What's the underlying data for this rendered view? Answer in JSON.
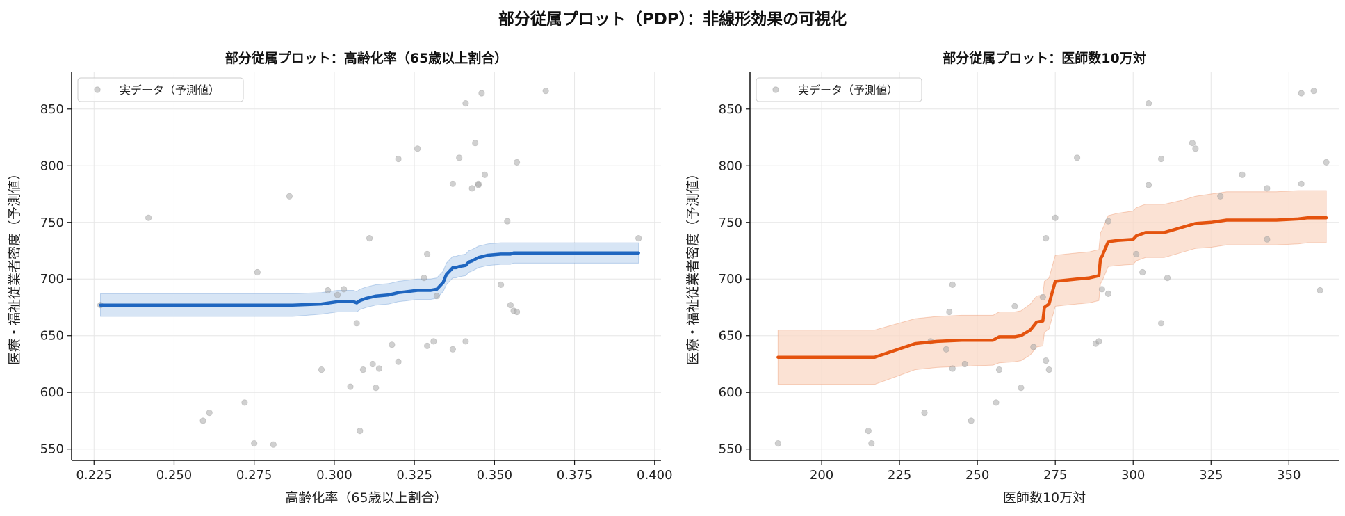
{
  "suptitle": "部分従属プロット（PDP）：非線形効果の可視化",
  "chart_data": [
    {
      "type": "line",
      "title": "部分従属プロット：高齢化率（65歳以上割合）",
      "xlabel": "高齢化率（65歳以上割合）",
      "ylabel": "医療・福祉従業者密度（予測値）",
      "xlim": [
        0.218,
        0.402
      ],
      "ylim": [
        540,
        883
      ],
      "xticks": [
        0.225,
        0.25,
        0.275,
        0.3,
        0.325,
        0.35,
        0.375,
        0.4
      ],
      "xtick_labels": [
        "0.225",
        "0.250",
        "0.275",
        "0.300",
        "0.325",
        "0.350",
        "0.375",
        "0.400"
      ],
      "yticks": [
        550,
        600,
        650,
        700,
        750,
        800,
        850
      ],
      "grid": true,
      "legend": {
        "position": "top-left",
        "entries": [
          "実データ（予測値）"
        ]
      },
      "line_color": "#1f66c0",
      "band_color": "#c9dcf2",
      "pdp": {
        "x": [
          0.227,
          0.287,
          0.296,
          0.301,
          0.306,
          0.307,
          0.308,
          0.31,
          0.313,
          0.317,
          0.32,
          0.323,
          0.326,
          0.33,
          0.332,
          0.334,
          0.335,
          0.337,
          0.338,
          0.339,
          0.341,
          0.342,
          0.343,
          0.345,
          0.348,
          0.352,
          0.355,
          0.356,
          0.357,
          0.36,
          0.375,
          0.395
        ],
        "y": [
          677,
          677,
          678,
          680,
          680,
          679,
          681,
          683,
          685,
          686,
          688,
          689,
          690,
          690,
          691,
          697,
          704,
          710,
          710,
          711,
          712,
          715,
          716,
          719,
          721,
          722,
          722,
          723,
          723,
          723,
          723,
          723
        ],
        "lower": [
          667,
          667,
          669,
          671,
          671,
          671,
          673,
          675,
          677,
          678,
          680,
          681,
          682,
          682,
          683,
          689,
          695,
          701,
          701,
          702,
          703,
          706,
          707,
          710,
          712,
          713,
          713,
          714,
          714,
          714,
          714,
          714
        ],
        "upper": [
          687,
          687,
          688,
          690,
          690,
          689,
          691,
          693,
          695,
          696,
          698,
          699,
          700,
          700,
          701,
          707,
          714,
          720,
          720,
          721,
          722,
          725,
          726,
          729,
          731,
          732,
          732,
          732,
          732,
          732,
          732,
          732
        ]
      },
      "points": {
        "name": "実データ（予測値）",
        "color": "#aaaaaa",
        "x": [
          0.227,
          0.242,
          0.259,
          0.261,
          0.272,
          0.275,
          0.276,
          0.281,
          0.286,
          0.296,
          0.298,
          0.301,
          0.303,
          0.305,
          0.307,
          0.308,
          0.309,
          0.311,
          0.312,
          0.313,
          0.314,
          0.318,
          0.32,
          0.32,
          0.326,
          0.328,
          0.329,
          0.329,
          0.331,
          0.332,
          0.337,
          0.337,
          0.339,
          0.341,
          0.341,
          0.343,
          0.344,
          0.345,
          0.345,
          0.346,
          0.347,
          0.352,
          0.354,
          0.355,
          0.356,
          0.357,
          0.357,
          0.366,
          0.395
        ],
        "y": [
          677,
          754,
          575,
          582,
          591,
          555,
          706,
          554,
          773,
          620,
          690,
          686,
          691,
          605,
          661,
          566,
          620,
          736,
          625,
          604,
          621,
          642,
          806,
          627,
          815,
          701,
          641,
          722,
          645,
          685,
          784,
          638,
          807,
          855,
          645,
          780,
          820,
          783,
          784,
          864,
          792,
          695,
          751,
          677,
          672,
          803,
          671,
          866,
          736
        ]
      }
    },
    {
      "type": "line",
      "title": "部分従属プロット：医師数10万対",
      "xlabel": "医師数10万対",
      "ylabel": "医療・福祉従業者密度（予測値）",
      "xlim": [
        177,
        366
      ],
      "ylim": [
        540,
        883
      ],
      "xticks": [
        200,
        225,
        250,
        275,
        300,
        325,
        350
      ],
      "xtick_labels": [
        "200",
        "225",
        "250",
        "275",
        "300",
        "325",
        "350"
      ],
      "yticks": [
        550,
        600,
        650,
        700,
        750,
        800,
        850
      ],
      "grid": true,
      "legend": {
        "position": "top-left",
        "entries": [
          "実データ（予測値）"
        ]
      },
      "line_color": "#e4530e",
      "band_color": "#f9d8c6",
      "pdp": {
        "x": [
          186,
          195,
          205,
          217,
          230,
          237,
          245,
          255,
          257,
          262,
          264,
          267,
          269,
          271,
          271.5,
          273,
          275,
          282,
          286,
          289,
          289.5,
          290,
          292,
          295,
          300,
          301,
          304,
          306,
          310,
          315,
          320,
          325,
          330,
          335,
          340,
          343,
          346,
          353,
          356,
          362
        ],
        "y": [
          631,
          631,
          631,
          631,
          643,
          645,
          646,
          646,
          649,
          649,
          650,
          655,
          662,
          663,
          675,
          678,
          698,
          700,
          701,
          703,
          718,
          720,
          733,
          734,
          735,
          738,
          741,
          741,
          741,
          745,
          749,
          750,
          752,
          752,
          752,
          752,
          752,
          753,
          754,
          754
        ],
        "lower": [
          607,
          607,
          607,
          607,
          620,
          622,
          623,
          624,
          626,
          627,
          628,
          633,
          640,
          641,
          653,
          656,
          676,
          678,
          679,
          681,
          696,
          698,
          711,
          712,
          713,
          716,
          719,
          719,
          719,
          723,
          727,
          728,
          730,
          730,
          730,
          730,
          730,
          731,
          732,
          732
        ],
        "upper": [
          655,
          655,
          655,
          655,
          665,
          667,
          668,
          668,
          671,
          671,
          672,
          678,
          685,
          686,
          698,
          701,
          721,
          723,
          724,
          726,
          741,
          743,
          756,
          758,
          760,
          763,
          766,
          766,
          766,
          769,
          773,
          775,
          777,
          777,
          777,
          777,
          777,
          778,
          778,
          778
        ]
      },
      "points": {
        "name": "実データ（予測値）",
        "color": "#aaaaaa",
        "x": [
          186,
          215,
          216,
          233,
          235,
          240,
          241,
          242,
          242,
          246,
          248,
          256,
          257,
          262,
          264,
          268,
          271,
          272,
          272,
          273,
          275,
          282,
          288,
          289,
          290,
          292,
          292,
          301,
          303,
          305,
          305,
          309,
          309,
          311,
          319,
          320,
          328,
          335,
          343,
          343,
          354,
          354,
          358,
          360,
          362
        ],
        "y": [
          555,
          566,
          555,
          582,
          645,
          638,
          671,
          695,
          621,
          625,
          575,
          591,
          620,
          676,
          604,
          640,
          684,
          628,
          736,
          620,
          754,
          807,
          643,
          645,
          691,
          751,
          687,
          722,
          706,
          855,
          783,
          806,
          661,
          701,
          820,
          815,
          773,
          792,
          780,
          735,
          864,
          784,
          866,
          690,
          803
        ]
      }
    }
  ]
}
